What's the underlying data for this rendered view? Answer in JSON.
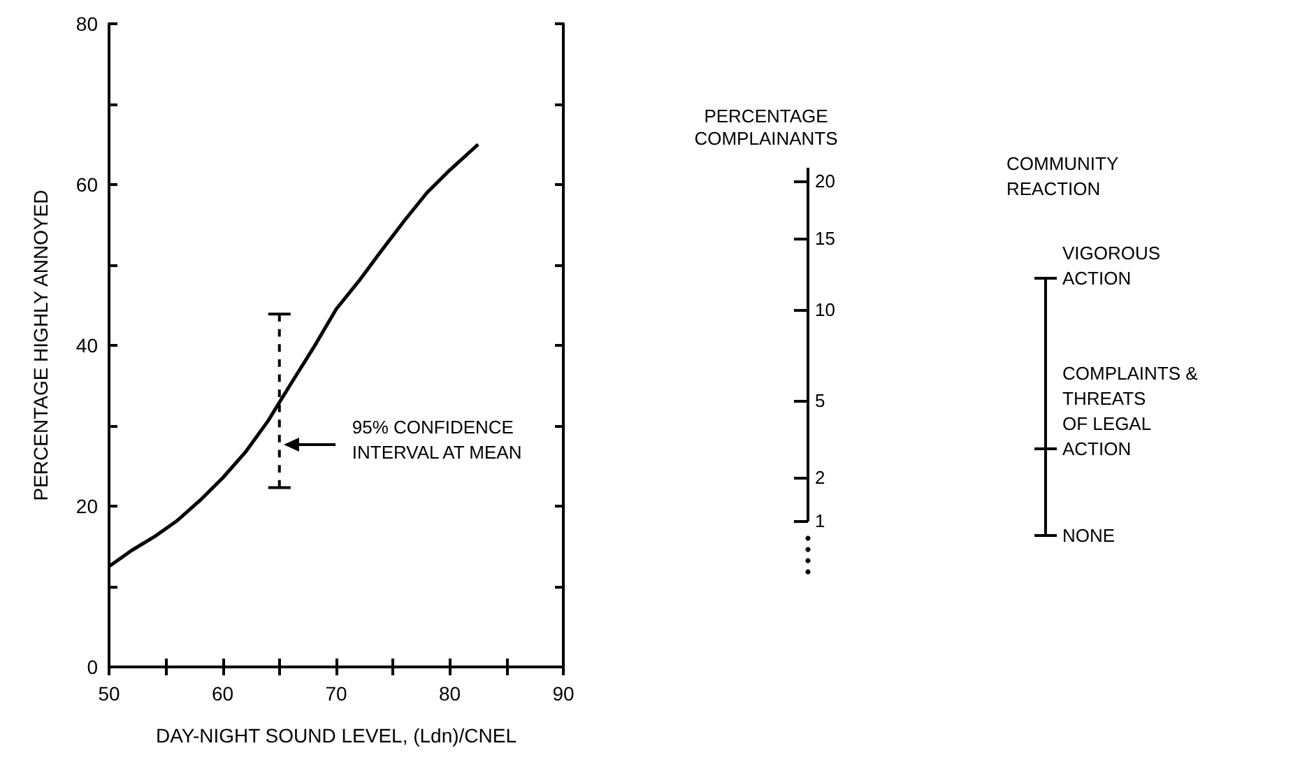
{
  "chart_data": [
    {
      "type": "line",
      "xlabel": "DAY-NIGHT SOUND LEVEL, (Ldn)/CNEL",
      "ylabel": "PERCENTAGE HIGHLY ANNOYED",
      "x": [
        50,
        52,
        54,
        56,
        58,
        60,
        62,
        64,
        65,
        66,
        68,
        70,
        72,
        74,
        76,
        78,
        80,
        82.5
      ],
      "series": [
        {
          "color": "#000000",
          "values": [
            12.5,
            14.5,
            16.2,
            18.2,
            20.7,
            23.5,
            26.7,
            30.6,
            32.9,
            35.2,
            39.7,
            44.5,
            48,
            51.8,
            55.5,
            59,
            61.8,
            65
          ],
          "errors": [
            null,
            null,
            null,
            null,
            null,
            null,
            null,
            null,
            [
              22.3,
              43.9
            ],
            null,
            null,
            null,
            null,
            null,
            null,
            null,
            null,
            null
          ]
        }
      ],
      "xlim": [
        50,
        90
      ],
      "xticks": [
        50,
        {
          "value": 55,
          "label": null
        },
        60,
        {
          "value": 65,
          "label": null
        },
        70,
        {
          "value": 75,
          "label": null
        },
        80,
        {
          "value": 85,
          "label": null
        },
        90
      ],
      "ylim": [
        0,
        80
      ],
      "yticks": [
        0,
        {
          "value": 10,
          "label": null
        },
        20,
        {
          "value": 30,
          "label": null
        },
        40,
        {
          "value": 50,
          "label": null
        },
        60,
        {
          "value": 70,
          "label": null
        },
        80
      ],
      "annotations": [
        "95% CONFIDENCE\nINTERVAL AT MEAN"
      ],
      "grid": false,
      "marker": "none",
      "line_style": "solid"
    },
    {
      "type": "other",
      "title": "PERCENTAGE\nCOMPLAINANTS",
      "annotations": [
        "20",
        "15",
        "10",
        "5",
        "2",
        "1",
        "COMMUNITY\nREACTION",
        "VIGOROUS\nACTION",
        "COMPLAINTS &\nTHREATS\nOF LEGAL\nACTION",
        "NONE"
      ]
    }
  ]
}
